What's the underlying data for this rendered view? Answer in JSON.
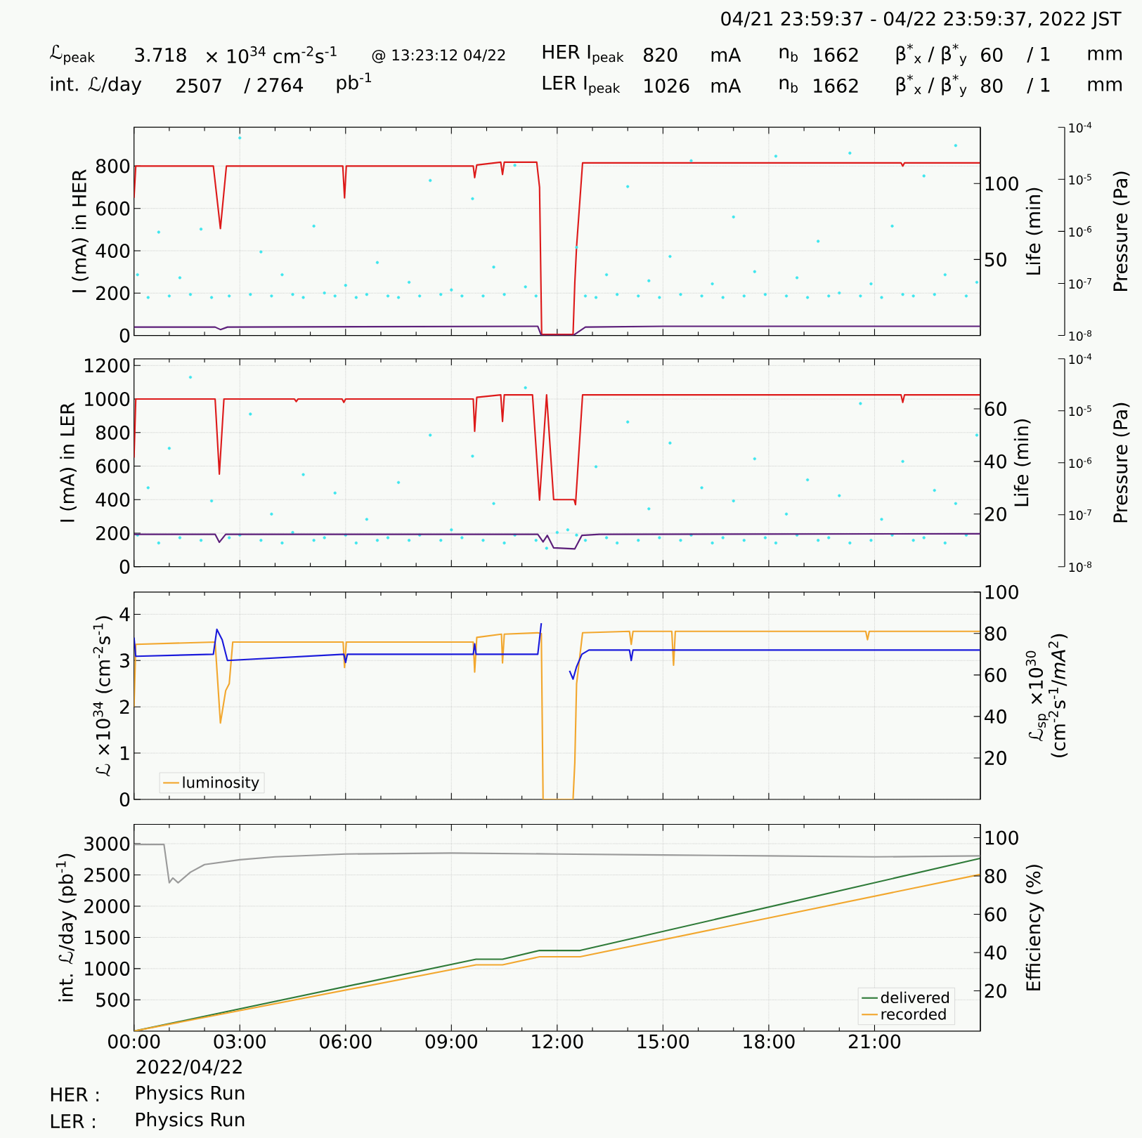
{
  "chart_data": [
    {
      "type": "line",
      "annotations": [
        "04/21 23:59:37 - 04/22 23:59:37, 2022 JST",
        "ℒ$_{peak}$",
        "3.718",
        "× 10$^{34}$ cm$^{-2}$s$^{-1}$",
        "@ 13:23:12 04/22",
        "int. ℒ/day",
        "2507",
        "/ 2764",
        "pb$^{-1}$",
        "HER I$_{peak}$",
        "820",
        "mA",
        "n$_{b}$",
        "1662",
        "β$^{*}$$_{x}$ / β$^{*}$$_{y}$",
        "60",
        "/ 1",
        "mm",
        "LER I$_{peak}$",
        "1026",
        "mA",
        "n$_{b}$",
        "1662",
        "β$^{*}$$_{x}$ / β$^{*}$$_{y}$",
        "80",
        "/ 1",
        "mm"
      ],
      "ylabel": "I (mA) in HER",
      "y2label": "Life (min)",
      "y3label": "Pressure (Pa)",
      "xlim": [
        0,
        24
      ],
      "xticks": [
        {
          "value": 0,
          "label": null
        },
        {
          "value": 3,
          "label": null
        },
        {
          "value": 6,
          "label": null
        },
        {
          "value": 9,
          "label": null
        },
        {
          "value": 12,
          "label": null
        },
        {
          "value": 15,
          "label": null
        },
        {
          "value": 18,
          "label": null
        },
        {
          "value": 21,
          "label": null
        }
      ],
      "ylim": [
        0,
        983
      ],
      "yticks": [
        0,
        200,
        400,
        600,
        800
      ],
      "y2lim": [
        0,
        137
      ],
      "y2ticks": [
        50,
        100
      ],
      "y3lim": [
        1e-08,
        0.0001
      ],
      "y3ticks": [
        {
          "value": 1e-08,
          "label": "10$^{-8}$"
        },
        {
          "value": 1e-07,
          "label": "10$^{-7}$"
        },
        {
          "value": 1e-06,
          "label": "10$^{-6}$"
        },
        {
          "value": 1e-05,
          "label": "10$^{-5}$"
        },
        {
          "value": 0.0001,
          "label": "10$^{-4}$"
        }
      ],
      "log": "y3",
      "grid": true,
      "tick_labels": "y",
      "series": [
        {
          "type": "scatter",
          "axis": "y2",
          "marker": "circle",
          "color": "#3ee6ee",
          "x": [
            0.1,
            0.4,
            0.7,
            1.0,
            1.3,
            1.6,
            1.9,
            2.2,
            2.7,
            3.0,
            3.3,
            3.6,
            3.9,
            4.2,
            4.5,
            4.8,
            5.1,
            5.4,
            5.7,
            6.0,
            6.3,
            6.6,
            6.9,
            7.2,
            7.5,
            7.8,
            8.1,
            8.4,
            8.7,
            9.0,
            9.3,
            9.6,
            9.9,
            10.2,
            10.5,
            10.8,
            11.1,
            11.4,
            12.55,
            12.8,
            13.1,
            13.4,
            13.7,
            14.0,
            14.3,
            14.6,
            14.9,
            15.2,
            15.5,
            15.8,
            16.1,
            16.4,
            16.7,
            17.0,
            17.3,
            17.6,
            17.9,
            18.2,
            18.5,
            18.8,
            19.1,
            19.4,
            19.7,
            20.0,
            20.3,
            20.6,
            20.9,
            21.2,
            21.5,
            21.8,
            22.1,
            22.4,
            22.7,
            23.0,
            23.3,
            23.6,
            23.9
          ],
          "values": [
            40,
            25,
            68,
            26,
            38,
            27,
            70,
            25,
            26,
            130,
            27,
            55,
            26,
            40,
            27,
            25,
            72,
            28,
            26,
            33,
            25,
            27,
            48,
            26,
            25,
            35,
            26,
            102,
            27,
            30,
            26,
            90,
            26,
            45,
            27,
            112,
            32,
            26,
            58,
            26,
            25,
            40,
            27,
            98,
            26,
            36,
            25,
            52,
            27,
            115,
            26,
            34,
            25,
            78,
            26,
            42,
            27,
            118,
            26,
            38,
            25,
            62,
            26,
            28,
            120,
            26,
            34,
            25,
            72,
            27,
            26,
            105,
            27,
            40,
            125,
            26,
            35
          ]
        },
        {
          "type": "line",
          "axis": "y",
          "color": "#dd1a1a",
          "x": [
            0,
            0.05,
            2.25,
            2.45,
            2.62,
            5.92,
            5.97,
            6.02,
            9.62,
            9.66,
            9.72,
            10.4,
            10.45,
            10.5,
            11.42,
            11.5,
            11.56,
            12.45,
            12.5,
            12.55,
            12.72,
            21.75,
            21.8,
            21.85,
            23.99
          ],
          "values": [
            650,
            800,
            800,
            505,
            800,
            800,
            650,
            800,
            800,
            745,
            805,
            818,
            760,
            818,
            818,
            700,
            5,
            5,
            250,
            420,
            815,
            815,
            800,
            815,
            815
          ]
        },
        {
          "type": "line",
          "axis": "y3",
          "color": "#5c1f7a",
          "x": [
            0,
            2.3,
            2.45,
            2.65,
            11.45,
            11.55,
            12.45,
            12.8,
            15,
            23.99
          ],
          "values": [
            1.45e-08,
            1.45e-08,
            1.3e-08,
            1.45e-08,
            1.5e-08,
            1e-08,
            1e-08,
            1.45e-08,
            1.5e-08,
            1.5e-08
          ]
        }
      ]
    },
    {
      "type": "line",
      "ylabel": "I (mA) in LER",
      "y2label": "Life (min)",
      "y3label": "Pressure (Pa)",
      "xlim": [
        0,
        24
      ],
      "xticks": [
        {
          "value": 0,
          "label": null
        },
        {
          "value": 3,
          "label": null
        },
        {
          "value": 6,
          "label": null
        },
        {
          "value": 9,
          "label": null
        },
        {
          "value": 12,
          "label": null
        },
        {
          "value": 15,
          "label": null
        },
        {
          "value": 18,
          "label": null
        },
        {
          "value": 21,
          "label": null
        }
      ],
      "ylim": [
        0,
        1240
      ],
      "yticks": [
        0,
        200,
        400,
        600,
        800,
        1000,
        1200
      ],
      "y2lim": [
        0,
        79
      ],
      "y2ticks": [
        20,
        40,
        60
      ],
      "y3lim": [
        1e-08,
        0.0001
      ],
      "y3ticks": [
        {
          "value": 1e-08,
          "label": "10$^{-8}$"
        },
        {
          "value": 1e-07,
          "label": "10$^{-7}$"
        },
        {
          "value": 1e-06,
          "label": "10$^{-6}$"
        },
        {
          "value": 1e-05,
          "label": "10$^{-5}$"
        },
        {
          "value": 0.0001,
          "label": "10$^{-4}$"
        }
      ],
      "log": "y3",
      "grid": true,
      "tick_labels": "y",
      "series": [
        {
          "type": "scatter",
          "axis": "y2",
          "marker": "circle",
          "color": "#3ee6ee",
          "x": [
            0.1,
            0.4,
            0.7,
            1.0,
            1.3,
            1.6,
            1.9,
            2.2,
            2.7,
            3.0,
            3.3,
            3.6,
            3.9,
            4.2,
            4.5,
            4.8,
            5.1,
            5.4,
            5.7,
            6.0,
            6.3,
            6.6,
            6.9,
            7.2,
            7.5,
            7.8,
            8.1,
            8.4,
            8.7,
            9.0,
            9.3,
            9.6,
            9.9,
            10.2,
            10.5,
            10.8,
            11.1,
            11.4,
            11.7,
            12.0,
            12.3,
            12.55,
            12.8,
            13.1,
            13.4,
            13.7,
            14.0,
            14.3,
            14.6,
            14.9,
            15.2,
            15.5,
            15.8,
            16.1,
            16.4,
            16.7,
            17.0,
            17.3,
            17.6,
            17.9,
            18.2,
            18.5,
            18.8,
            19.1,
            19.4,
            19.7,
            20.0,
            20.3,
            20.6,
            20.9,
            21.2,
            21.5,
            21.8,
            22.1,
            22.4,
            22.7,
            23.0,
            23.3,
            23.6,
            23.9
          ],
          "values": [
            12,
            30,
            9,
            45,
            11,
            72,
            10,
            25,
            11,
            12,
            58,
            10,
            20,
            9,
            13,
            35,
            10,
            11,
            28,
            12,
            9,
            18,
            10,
            11,
            32,
            10,
            12,
            50,
            10,
            14,
            11,
            42,
            10,
            24,
            9,
            12,
            68,
            10,
            7,
            13,
            14,
            12,
            10,
            38,
            11,
            9,
            55,
            10,
            22,
            11,
            47,
            10,
            12,
            30,
            9,
            11,
            25,
            10,
            41,
            11,
            9,
            20,
            12,
            33,
            10,
            11,
            27,
            9,
            62,
            10,
            18,
            12,
            40,
            10,
            11,
            29,
            9,
            24,
            12,
            50
          ]
        },
        {
          "type": "line",
          "axis": "y",
          "color": "#dd1a1a",
          "x": [
            0,
            0.05,
            2.3,
            2.42,
            2.55,
            4.55,
            4.6,
            4.65,
            5.9,
            5.95,
            6.0,
            9.62,
            9.66,
            9.72,
            10.4,
            10.45,
            10.5,
            11.3,
            11.5,
            11.7,
            11.9,
            12.48,
            12.52,
            12.72,
            21.75,
            21.8,
            21.85,
            23.99
          ],
          "values": [
            650,
            1000,
            1000,
            552,
            1000,
            1000,
            985,
            1000,
            1000,
            980,
            1000,
            1000,
            808,
            1010,
            1025,
            866,
            1025,
            1025,
            397,
            1025,
            400,
            400,
            370,
            1025,
            1025,
            980,
            1025,
            1025
          ]
        },
        {
          "type": "line",
          "axis": "y3",
          "color": "#5c1f7a",
          "x": [
            0,
            2.3,
            2.42,
            2.6,
            11.45,
            11.6,
            11.72,
            11.9,
            12.5,
            12.7,
            13.2,
            23.99
          ],
          "values": [
            4.2e-08,
            4.2e-08,
            2.95e-08,
            4.2e-08,
            4.2e-08,
            3e-08,
            4e-08,
            2.3e-08,
            2.2e-08,
            4e-08,
            4.2e-08,
            4.3e-08
          ]
        }
      ]
    },
    {
      "type": "line",
      "ylabel": "ℒ ×10$^{34}$ (cm$^{-2}$s$^{-1}$)",
      "y2label": "ℒ$_{sp}$ ×10$^{30}$ (cm$^{-2}$s$^{-1}$/*mA*$^{2}$)",
      "xlim": [
        0,
        24
      ],
      "xticks": [
        {
          "value": 0,
          "label": null
        },
        {
          "value": 3,
          "label": null
        },
        {
          "value": 6,
          "label": null
        },
        {
          "value": 9,
          "label": null
        },
        {
          "value": 12,
          "label": null
        },
        {
          "value": 15,
          "label": null
        },
        {
          "value": 18,
          "label": null
        },
        {
          "value": 21,
          "label": null
        }
      ],
      "ylim": [
        0,
        4.48
      ],
      "yticks": [
        0,
        1,
        2,
        3,
        4
      ],
      "y2lim": [
        0,
        100
      ],
      "y2ticks": [
        20,
        40,
        60,
        80,
        100
      ],
      "grid": true,
      "tick_labels": "y",
      "legend": "bottom left",
      "series": [
        {
          "name": "luminosity",
          "axis": "y",
          "color": "#f2a72e",
          "x": [
            0,
            0.05,
            2.3,
            2.45,
            2.6,
            2.7,
            2.8,
            5.93,
            5.97,
            6.02,
            9.62,
            9.66,
            9.72,
            10.42,
            10.45,
            10.5,
            11.45,
            11.55,
            11.6,
            12.45,
            12.5,
            12.55,
            12.72,
            14.05,
            14.1,
            14.15,
            15.25,
            15.3,
            15.35,
            20.75,
            20.8,
            20.85,
            23.99
          ],
          "values": [
            2.0,
            3.35,
            3.4,
            1.65,
            2.35,
            2.5,
            3.4,
            3.4,
            2.85,
            3.4,
            3.4,
            2.75,
            3.5,
            3.57,
            2.95,
            3.57,
            3.6,
            3.58,
            0,
            0,
            0.8,
            2.5,
            3.6,
            3.63,
            3.35,
            3.63,
            3.63,
            2.9,
            3.63,
            3.63,
            3.45,
            3.63,
            3.63
          ]
        },
        {
          "axis": "y2",
          "color": "#1a1adb",
          "x": [
            0,
            0.05,
            2.25,
            2.35,
            2.5,
            2.65,
            5.95,
            6.0,
            6.05,
            9.62,
            9.66,
            9.7,
            11.45,
            11.55,
            11.58,
            12.35,
            12.45,
            12.55,
            12.7,
            12.9,
            14.05,
            14.1,
            14.15,
            23.99
          ],
          "values": [
            78,
            69,
            70,
            82,
            77,
            67,
            70,
            66,
            70,
            70,
            75,
            70,
            70,
            85,
            null,
            62,
            58,
            64,
            70,
            72,
            72,
            67,
            72,
            72
          ]
        }
      ]
    },
    {
      "type": "line",
      "ylabel": "int. ℒ/day (pb$^{-1}$)",
      "y2label": "Efficiency (%)",
      "xlabel": "2022/04/22",
      "annotations": [
        "HER :",
        "Physics Run",
        "LER :",
        "Physics Run"
      ],
      "xlim": [
        0,
        24
      ],
      "xticks": [
        {
          "value": 0,
          "label": "00:00"
        },
        {
          "value": 3,
          "label": "03:00"
        },
        {
          "value": 6,
          "label": "06:00"
        },
        {
          "value": 9,
          "label": "09:00"
        },
        {
          "value": 12,
          "label": "12:00"
        },
        {
          "value": 15,
          "label": "15:00"
        },
        {
          "value": 18,
          "label": "18:00"
        },
        {
          "value": 21,
          "label": "21:00"
        }
      ],
      "ylim": [
        0,
        3310
      ],
      "yticks": [
        500,
        1000,
        1500,
        2000,
        2500,
        3000
      ],
      "y2lim": [
        -1,
        107
      ],
      "y2ticks": [
        20,
        40,
        60,
        80,
        100
      ],
      "grid": true,
      "legend": "bottom right",
      "series": [
        {
          "name": "delivered",
          "axis": "y",
          "color": "#2e7a38",
          "x": [
            0,
            9.7,
            10.45,
            11.5,
            12.65,
            23.99
          ],
          "values": [
            0,
            1150,
            1150,
            1290,
            1290,
            2764
          ]
        },
        {
          "name": "recorded",
          "axis": "y",
          "color": "#f2a72e",
          "x": [
            0,
            9.7,
            10.45,
            11.5,
            12.65,
            23.99
          ],
          "values": [
            0,
            1060,
            1060,
            1190,
            1190,
            2507
          ]
        },
        {
          "axis": "y2",
          "color": "#9a9a9a",
          "x": [
            0,
            0.85,
            1.0,
            1.1,
            1.25,
            1.6,
            2.0,
            3.0,
            4.0,
            6.0,
            9.0,
            12.0,
            15.0,
            18.0,
            21.0,
            23.99
          ],
          "values": [
            96.5,
            96.5,
            76.5,
            79,
            76.5,
            82,
            86,
            88.5,
            90,
            91.5,
            92,
            91.5,
            91,
            90.5,
            90,
            90.5
          ]
        }
      ]
    }
  ]
}
